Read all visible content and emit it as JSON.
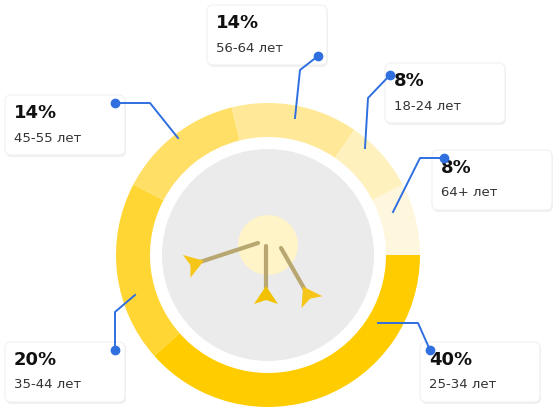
{
  "chart_data": {
    "type": "donut",
    "categories": [
      "25-34 лет",
      "35-44 лет",
      "45-55 лет",
      "56-64 лет",
      "18-24 лет",
      "64+ лет"
    ],
    "values": [
      40,
      20,
      14,
      14,
      8,
      8
    ],
    "value_labels": [
      "40%",
      "20%",
      "14%",
      "14%",
      "8%",
      "8%"
    ],
    "colors": [
      "#FFCC00",
      "#FFD633",
      "#FFDF66",
      "#FFE999",
      "#FFF1BD",
      "#FFF7DD"
    ],
    "data_labels": true
  }
}
